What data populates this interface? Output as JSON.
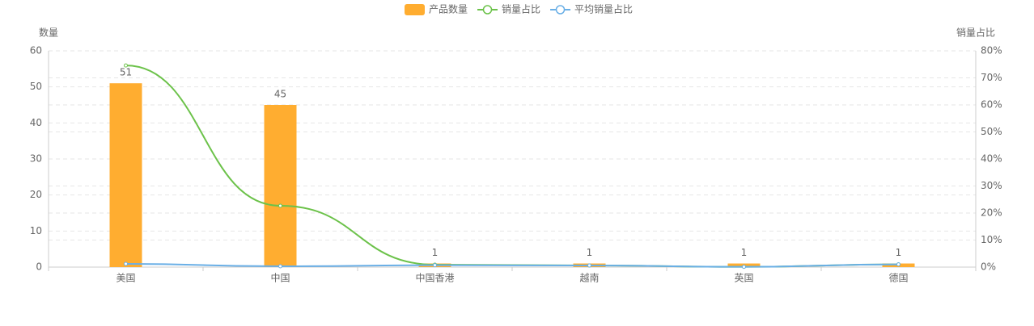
{
  "chart_data": {
    "type": "bar-line",
    "y_label": "数量",
    "y2_label": "销量占比",
    "categories": [
      "美国",
      "中国",
      "中国香港",
      "越南",
      "英国",
      "德国"
    ],
    "series": [
      {
        "name": "产品数量",
        "type": "bar",
        "color": "#ffad30",
        "values": [
          51,
          45,
          1,
          1,
          1,
          1
        ]
      },
      {
        "name": "销量占比",
        "type": "line",
        "axis": "y2",
        "color": "#6cc24a",
        "values": [
          74.6,
          22.7,
          0.9,
          0.6,
          0.1,
          1.0
        ]
      },
      {
        "name": "平均销量占比",
        "type": "line",
        "axis": "y2",
        "color": "#6aafe6",
        "values": [
          1.2,
          0.3,
          0.7,
          0.6,
          0.1,
          1.0
        ]
      }
    ],
    "ylim": [
      0,
      60
    ],
    "yticks": [
      0,
      10,
      20,
      30,
      40,
      50,
      60
    ],
    "y2lim": [
      0,
      80
    ],
    "y2ticks": [
      {
        "value": 0,
        "label": "0%"
      },
      {
        "value": 10,
        "label": "10%"
      },
      {
        "value": 20,
        "label": "20%"
      },
      {
        "value": 30,
        "label": "30%"
      },
      {
        "value": 40,
        "label": "40%"
      },
      {
        "value": 50,
        "label": "50%"
      },
      {
        "value": 60,
        "label": "60%"
      },
      {
        "value": 70,
        "label": "70%"
      },
      {
        "value": 80,
        "label": "80%"
      }
    ],
    "grid": true
  }
}
